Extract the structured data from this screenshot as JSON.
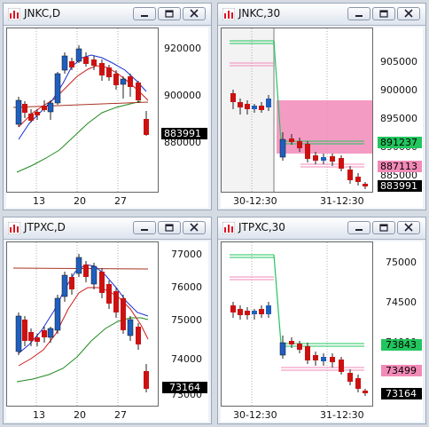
{
  "windows": [
    {
      "title": "JNKC,D",
      "y_ticks": [
        "920000",
        "900000",
        "880000"
      ],
      "x_ticks": [
        "13",
        "20",
        "27"
      ],
      "price_tag": "883991",
      "colors": {
        "up": "#1f5fbf",
        "down": "#cc1111",
        "ma_fast": "#1a2fd0",
        "ma_mid": "#cc1a1a",
        "ma_slow": "#1f8a1f"
      }
    },
    {
      "title": "JNKC,30",
      "y_ticks": [
        "905000",
        "900000",
        "895000",
        "890000",
        "885000"
      ],
      "x_ticks": [
        "30-12:30",
        "31-12:30"
      ],
      "price_tags": [
        {
          "value": "891237",
          "color": "#22c55e"
        },
        {
          "value": "887113",
          "color": "#f28ab8"
        },
        {
          "value": "883991",
          "color": "#000000"
        }
      ],
      "colors": {
        "zone": "#f28ab8",
        "level_green": "#22c55e",
        "level_pink": "#f28ab8"
      }
    },
    {
      "title": "JTPXC,D",
      "y_ticks": [
        "77000",
        "76000",
        "75000",
        "74000",
        "73000"
      ],
      "x_ticks": [
        "13",
        "20",
        "27"
      ],
      "price_tag": "73164",
      "colors": {
        "up": "#1f5fbf",
        "down": "#cc1111",
        "ma_fast": "#1a2fd0",
        "ma_mid": "#cc1a1a",
        "ma_slow": "#1f8a1f"
      }
    },
    {
      "title": "JTPXC,30",
      "y_ticks": [
        "75000",
        "74500",
        "74000"
      ],
      "x_ticks": [
        "30-12:30",
        "31-12:30"
      ],
      "price_tags": [
        {
          "value": "73843",
          "color": "#22c55e"
        },
        {
          "value": "73499",
          "color": "#f28ab8"
        },
        {
          "value": "73164",
          "color": "#000000"
        }
      ],
      "colors": {
        "level_green": "#22c55e",
        "level_pink": "#f28ab8"
      }
    }
  ],
  "icons": {
    "window": "chart-window-icon",
    "minimize": "minimize-icon",
    "maximize": "maximize-icon",
    "close": "close-icon"
  }
}
